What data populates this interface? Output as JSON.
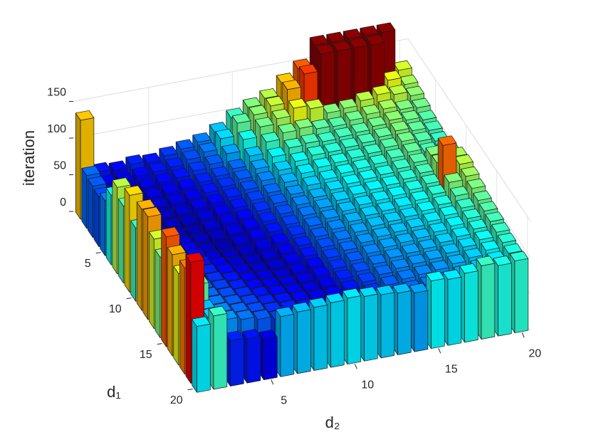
{
  "chart_data": {
    "type": "bar3",
    "xlabel": "d₂",
    "ylabel": "d₁",
    "zlabel": "iteration",
    "colormap": "jet",
    "clim": [
      40,
      180
    ],
    "grid": true,
    "xlim": [
      0.5,
      20.5
    ],
    "ylim": [
      0.5,
      20.5
    ],
    "zlim": [
      0,
      180
    ],
    "xticks": [
      5,
      10,
      15,
      20
    ],
    "yticks": [
      5,
      10,
      15,
      20
    ],
    "zticks": [
      0,
      50,
      100,
      150
    ],
    "values": [
      [
        135,
        60,
        58,
        62,
        60,
        65,
        70,
        75,
        85,
        100,
        110,
        118,
        135,
        150,
        178,
        178,
        178,
        178,
        178,
        122
      ],
      [
        72,
        56,
        55,
        58,
        60,
        62,
        68,
        74,
        88,
        105,
        112,
        120,
        138,
        155,
        178,
        178,
        178,
        178,
        125,
        115
      ],
      [
        70,
        55,
        52,
        55,
        58,
        60,
        65,
        70,
        80,
        95,
        108,
        115,
        125,
        120,
        110,
        112,
        118,
        122,
        118,
        112
      ],
      [
        68,
        54,
        52,
        54,
        56,
        58,
        62,
        66,
        72,
        85,
        100,
        108,
        110,
        105,
        104,
        108,
        112,
        115,
        110,
        108
      ],
      [
        75,
        52,
        50,
        52,
        54,
        56,
        60,
        64,
        70,
        80,
        92,
        100,
        102,
        100,
        102,
        104,
        108,
        112,
        108,
        104
      ],
      [
        95,
        55,
        50,
        50,
        52,
        55,
        58,
        62,
        68,
        76,
        86,
        94,
        98,
        98,
        100,
        102,
        106,
        110,
        106,
        102
      ],
      [
        118,
        60,
        52,
        50,
        50,
        53,
        56,
        60,
        66,
        72,
        82,
        90,
        94,
        96,
        98,
        100,
        104,
        108,
        104,
        100
      ],
      [
        105,
        62,
        55,
        50,
        48,
        52,
        55,
        58,
        64,
        70,
        78,
        86,
        90,
        94,
        96,
        98,
        102,
        106,
        102,
        98
      ],
      [
        132,
        65,
        58,
        52,
        50,
        50,
        54,
        57,
        62,
        68,
        76,
        82,
        88,
        92,
        94,
        96,
        100,
        104,
        110,
        108
      ],
      [
        100,
        68,
        60,
        55,
        50,
        48,
        52,
        56,
        60,
        66,
        74,
        80,
        86,
        90,
        92,
        94,
        98,
        102,
        112,
        116
      ],
      [
        138,
        70,
        62,
        58,
        52,
        50,
        50,
        54,
        58,
        64,
        72,
        78,
        84,
        88,
        90,
        92,
        96,
        100,
        148,
        118
      ],
      [
        140,
        72,
        64,
        60,
        55,
        52,
        50,
        52,
        56,
        62,
        70,
        76,
        82,
        86,
        88,
        90,
        94,
        98,
        110,
        114
      ],
      [
        122,
        75,
        66,
        62,
        58,
        54,
        52,
        52,
        56,
        60,
        68,
        74,
        80,
        84,
        86,
        88,
        92,
        96,
        104,
        110
      ],
      [
        110,
        78,
        68,
        64,
        60,
        56,
        54,
        52,
        54,
        58,
        66,
        72,
        78,
        82,
        84,
        86,
        90,
        94,
        100,
        106
      ],
      [
        150,
        80,
        70,
        66,
        62,
        58,
        56,
        54,
        54,
        58,
        64,
        70,
        76,
        80,
        82,
        84,
        88,
        92,
        98,
        104
      ],
      [
        138,
        82,
        72,
        68,
        64,
        60,
        58,
        56,
        54,
        56,
        62,
        68,
        74,
        78,
        80,
        82,
        86,
        90,
        96,
        102
      ],
      [
        125,
        105,
        74,
        70,
        66,
        62,
        60,
        58,
        56,
        56,
        60,
        66,
        72,
        76,
        78,
        80,
        84,
        88,
        94,
        100
      ],
      [
        145,
        84,
        76,
        72,
        68,
        64,
        62,
        60,
        58,
        56,
        58,
        64,
        70,
        74,
        76,
        78,
        82,
        86,
        92,
        98
      ],
      [
        165,
        86,
        78,
        74,
        70,
        66,
        64,
        62,
        60,
        58,
        58,
        62,
        68,
        72,
        74,
        76,
        80,
        84,
        90,
        96
      ],
      [
        90,
        100,
        62,
        60,
        55,
        82,
        84,
        86,
        88,
        90,
        88,
        86,
        84,
        80,
        92,
        90,
        94,
        100,
        96,
        98
      ]
    ]
  }
}
